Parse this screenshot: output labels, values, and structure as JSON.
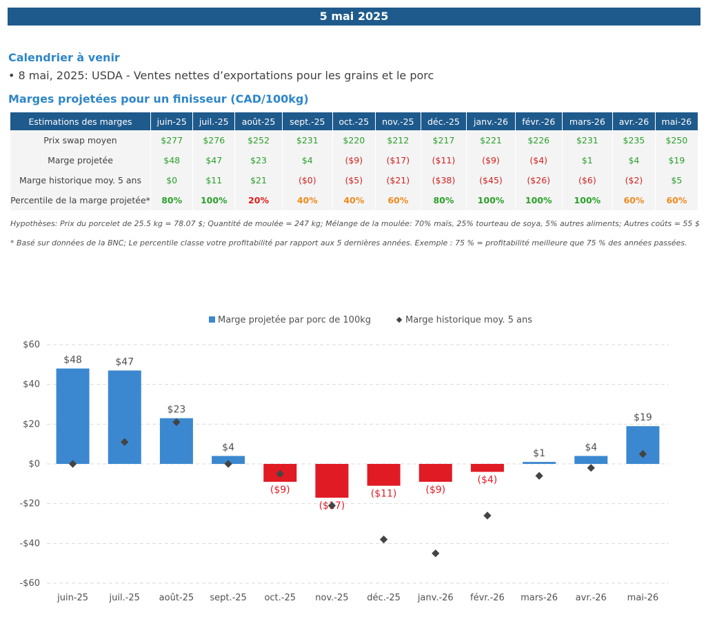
{
  "header": {
    "date": "5 mai 2025"
  },
  "calendar": {
    "title": "Calendrier à venir",
    "item": "• 8 mai, 2025: USDA - Ventes nettes d’exportations pour les grains et le porc"
  },
  "margins": {
    "title": "Marges projetées pour un finisseur (CAD/100kg)",
    "row_header": "Estimations des marges",
    "months": [
      "juin-25",
      "juil.-25",
      "août-25",
      "sept.-25",
      "oct.-25",
      "nov.-25",
      "déc.-25",
      "janv.-26",
      "févr.-26",
      "mars-26",
      "avr.-26",
      "mai-26"
    ],
    "rows": [
      {
        "label": "Prix swap moyen",
        "values": [
          "$277",
          "$276",
          "$252",
          "$231",
          "$220",
          "$212",
          "$217",
          "$221",
          "$226",
          "$231",
          "$235",
          "$250"
        ]
      },
      {
        "label": "Marge projetée",
        "values": [
          "$48",
          "$47",
          "$23",
          "$4",
          "($9)",
          "($17)",
          "($11)",
          "($9)",
          "($4)",
          "$1",
          "$4",
          "$19"
        ]
      },
      {
        "label": "Marge historique moy. 5 ans",
        "values": [
          "$0",
          "$11",
          "$21",
          "($0)",
          "($5)",
          "($21)",
          "($38)",
          "($45)",
          "($26)",
          "($6)",
          "($2)",
          "$5"
        ]
      },
      {
        "label": "Percentile de la marge projetée*",
        "values": [
          "80%",
          "100%",
          "20%",
          "40%",
          "40%",
          "60%",
          "80%",
          "100%",
          "100%",
          "100%",
          "60%",
          "60%"
        ]
      }
    ],
    "assumptions": "Hypothèses: Prix du porcelet de 25.5 kg = 78.07 $; Quantité de moulée = 247 kg; Mélange de la moulée: 70% maïs, 25% tourteau de soya, 5% autres aliments; Autres coûts = 55 $",
    "footnote": "* Basé sur données de la BNC; Le percentile classe votre profitabilité par rapport aux 5 dernières années. Exemple : 75 % = profitabilité meilleure que 75 % des années passées."
  },
  "colors": {
    "positive_bar": "#3b88d0",
    "negative_bar": "#e01b24",
    "marker": "#444444",
    "header": "#1f5a8c"
  },
  "chart_data": {
    "type": "bar",
    "categories": [
      "juin-25",
      "juil.-25",
      "août-25",
      "sept.-25",
      "oct.-25",
      "nov.-25",
      "déc.-25",
      "janv.-26",
      "févr.-26",
      "mars-26",
      "avr.-26",
      "mai-26"
    ],
    "series": [
      {
        "name": "Marge projetée par porc de 100kg",
        "type": "bar",
        "values": [
          48,
          47,
          23,
          4,
          -9,
          -17,
          -11,
          -9,
          -4,
          1,
          4,
          19
        ],
        "labels": [
          "$48",
          "$47",
          "$23",
          "$4",
          "($9)",
          "($17)",
          "($11)",
          "($9)",
          "($4)",
          "$1",
          "$4",
          "$19"
        ]
      },
      {
        "name": "Marge historique moy. 5 ans",
        "type": "scatter",
        "values": [
          0,
          11,
          21,
          0,
          -5,
          -21,
          -38,
          -45,
          -26,
          -6,
          -2,
          5
        ]
      }
    ],
    "yticks": [
      "$60",
      "$40",
      "$20",
      "$0",
      "-$20",
      "-$40",
      "-$60"
    ],
    "ylim": [
      -60,
      60
    ],
    "grid": true,
    "legend": "top"
  }
}
